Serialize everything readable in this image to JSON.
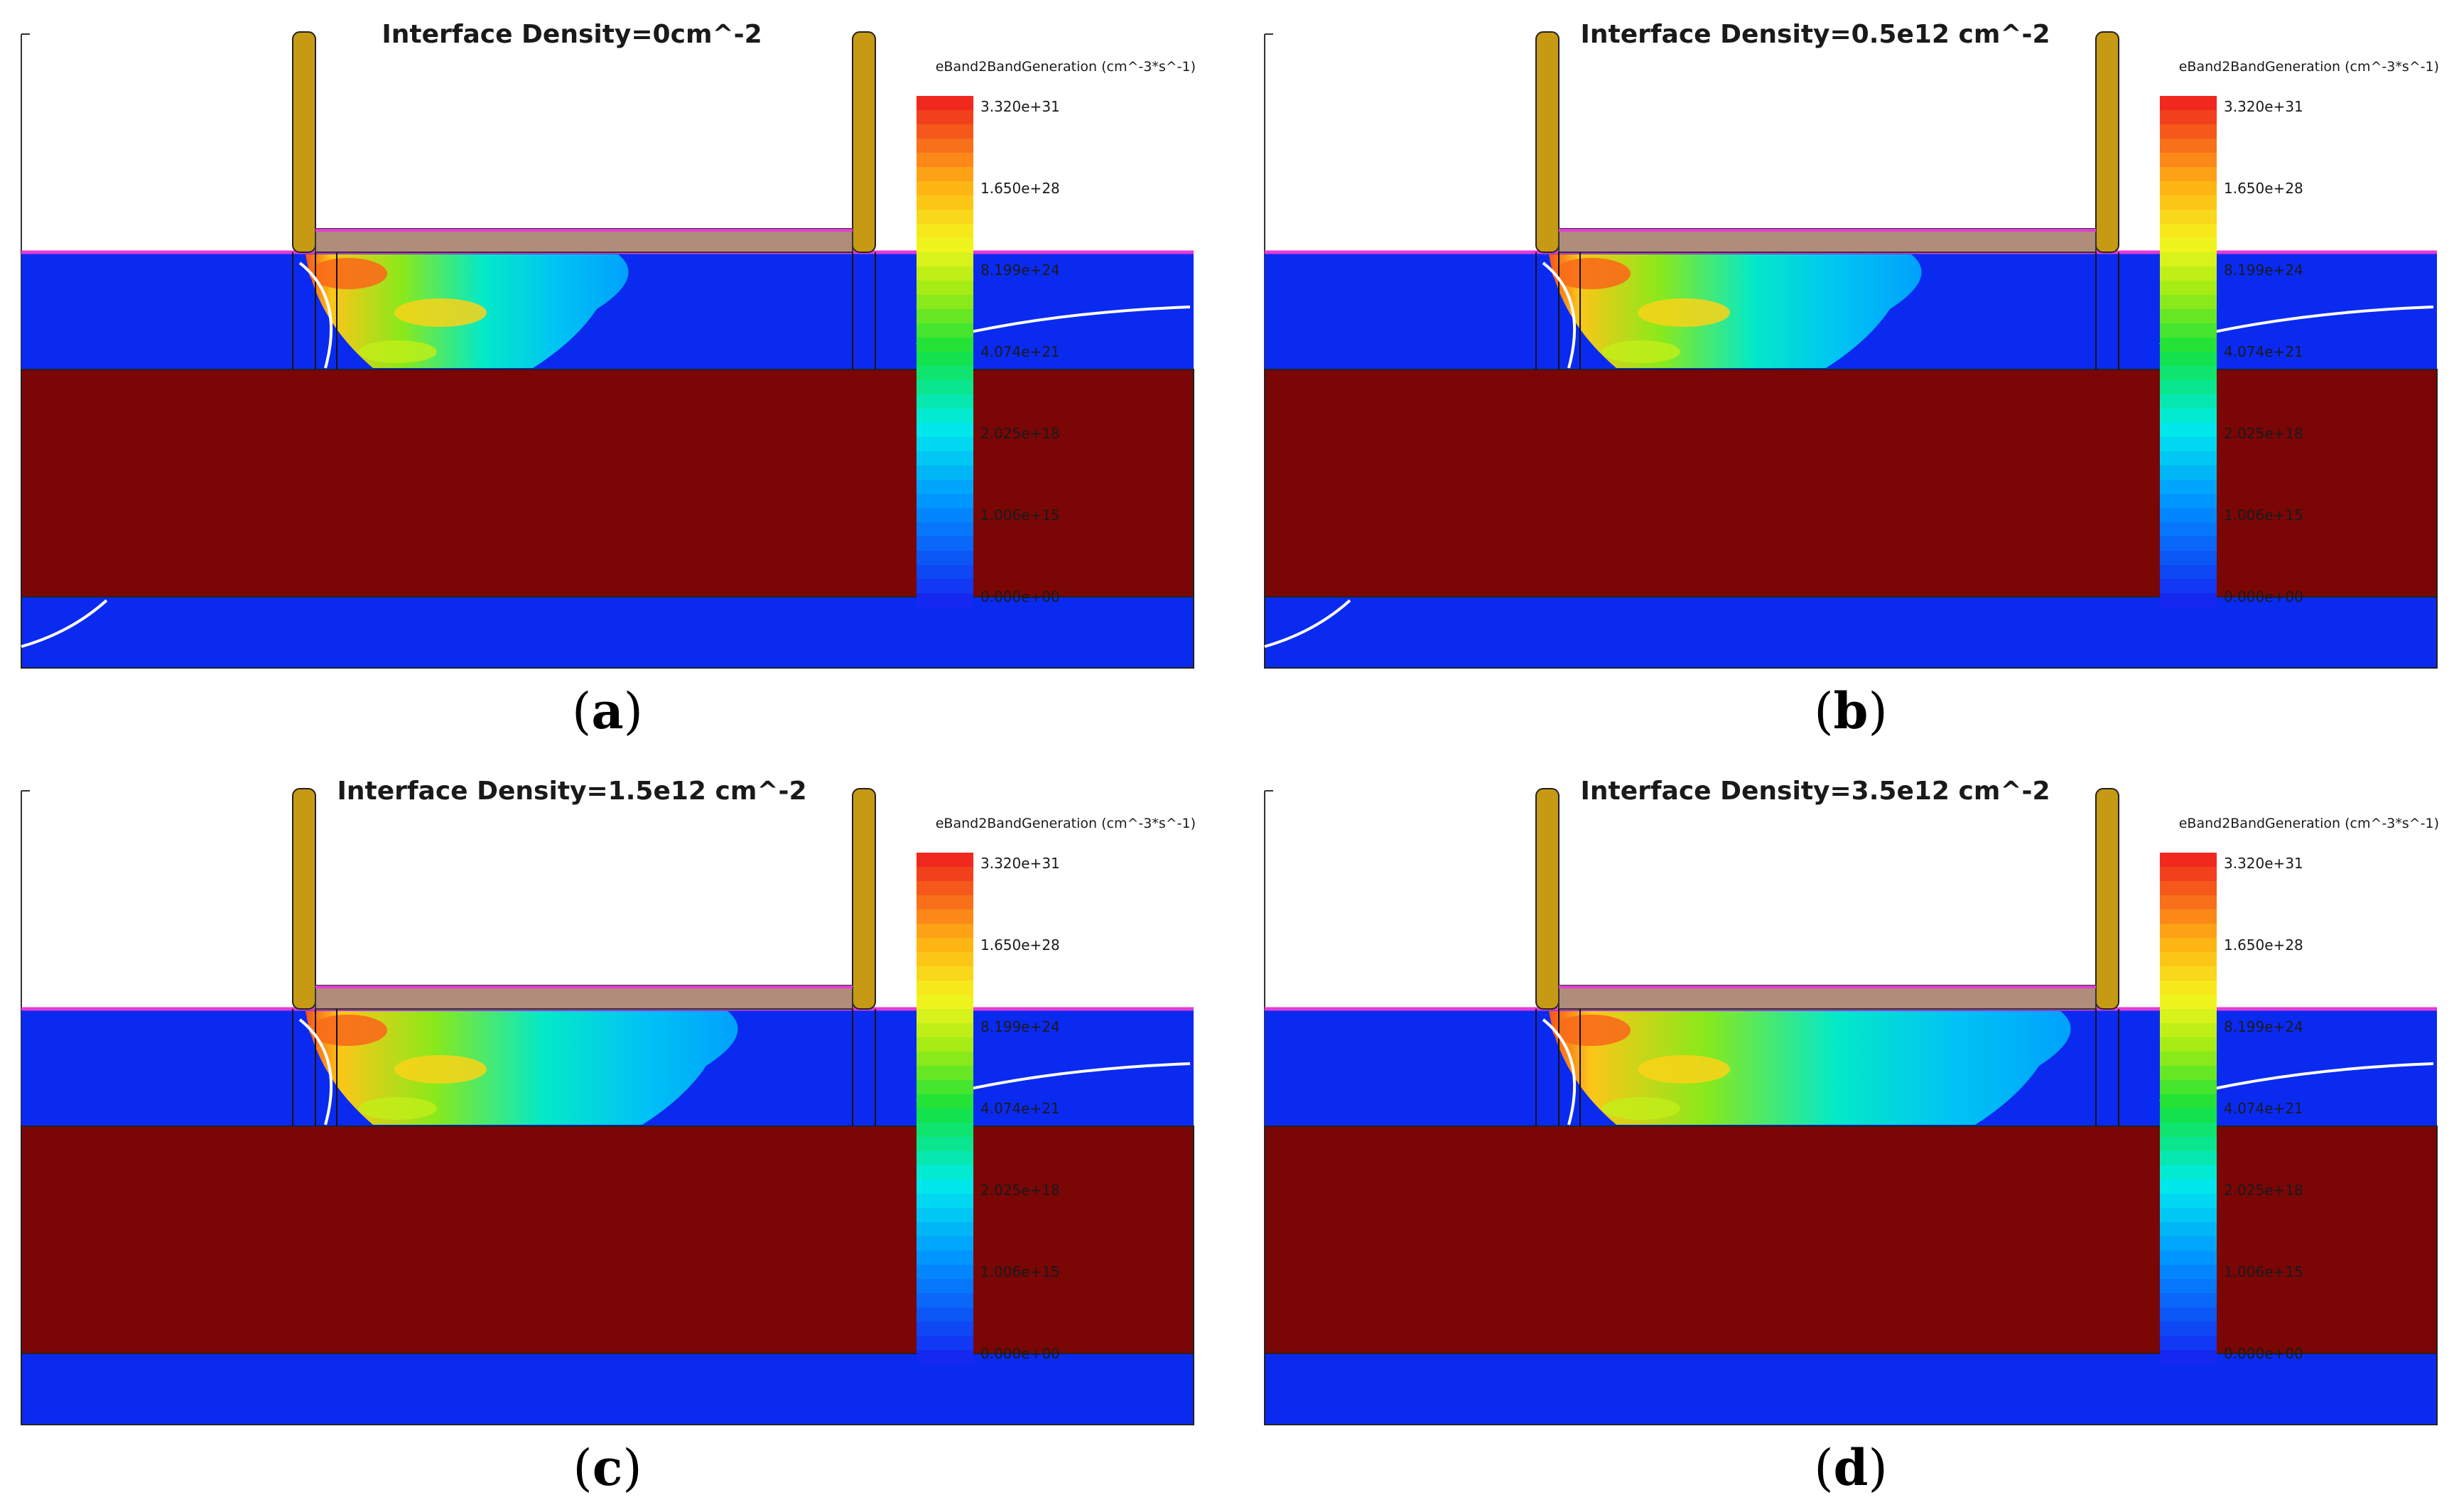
{
  "colors": {
    "silicon": "#0a2af0",
    "oxide_substrate": "#7a0606",
    "contact": "#c79a14",
    "gate": "#b08c7a",
    "interface": "#e43bd6",
    "junction_line": "#ffffff"
  },
  "colorbar": {
    "title": "eBand2BandGeneration (cm^-3*s^-1)",
    "ticks": [
      "3.320e+31",
      "1.650e+28",
      "8.199e+24",
      "4.074e+21",
      "2.025e+18",
      "1.006e+15",
      "0.000e+00"
    ]
  },
  "panels": [
    {
      "title": "Interface Density=0cm^-2",
      "label": "a",
      "spread": 0.0
    },
    {
      "title": "Interface Density=0.5e12 cm^-2",
      "label": "b",
      "spread": 0.25
    },
    {
      "title": "Interface Density=1.5e12 cm^-2",
      "label": "c",
      "spread": 0.55
    },
    {
      "title": "Interface Density=3.5e12 cm^-2",
      "label": "d",
      "spread": 1.0
    }
  ]
}
